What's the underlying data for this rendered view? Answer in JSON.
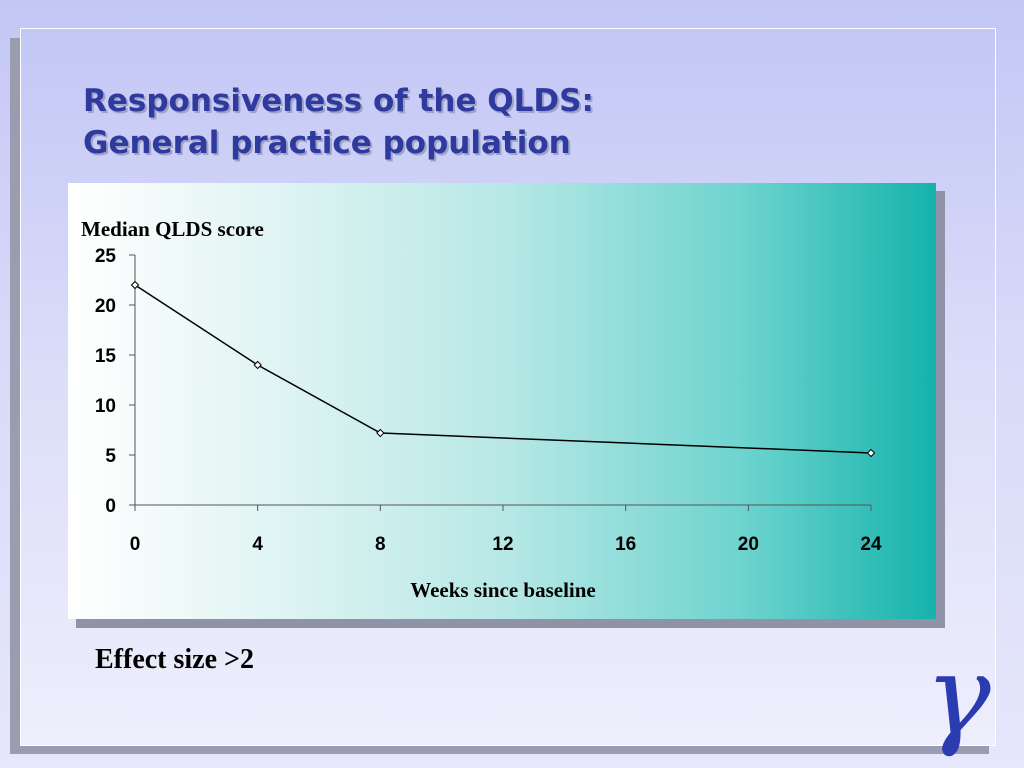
{
  "slide": {
    "title_line1": "Responsiveness of the QLDS:",
    "title_line2": "General practice population",
    "effect_text": "Effect size >2",
    "logo_glyph": "γ"
  },
  "colors": {
    "title": "#2e3a9e",
    "logo": "#2b3bb0",
    "panel_end": "#14b3ab",
    "line": "#000000"
  },
  "chart_data": {
    "type": "line",
    "ylabel": "Median QLDS score",
    "xlabel": "Weeks since baseline",
    "ylim": [
      0,
      25
    ],
    "xlim": [
      0,
      24
    ],
    "y_ticks": [
      0,
      5,
      10,
      15,
      20,
      25
    ],
    "x_ticks": [
      0,
      4,
      8,
      12,
      16,
      20,
      24
    ],
    "grid": false,
    "series": [
      {
        "x": [
          0,
          4,
          8,
          24
        ],
        "y": [
          22,
          14,
          7.2,
          5.2
        ]
      }
    ]
  }
}
